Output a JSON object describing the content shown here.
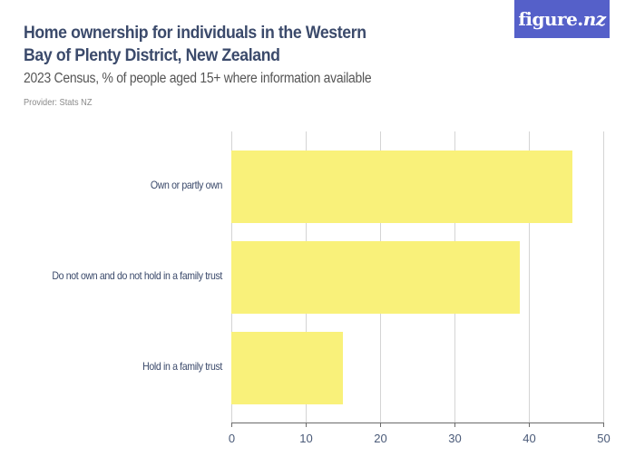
{
  "header": {
    "title": "Home ownership for individuals in the Western Bay of Plenty District, New Zealand",
    "subtitle": "2023 Census, % of people aged 15+ where information available",
    "provider": "Provider: Stats NZ"
  },
  "logo": {
    "text_main": "figure.",
    "text_italic": "nz",
    "background": "#5560c9"
  },
  "colors": {
    "bar": "#f9f17a",
    "title": "#3b4a6b",
    "grid": "#d4d4d4"
  },
  "chart_data": {
    "type": "bar",
    "orientation": "horizontal",
    "title": "Home ownership for individuals in the Western Bay of Plenty District, New Zealand",
    "subtitle": "2023 Census, % of people aged 15+ where information available",
    "categories": [
      "Own or partly own",
      "Do not own and do not hold in a family trust",
      "Hold in a family trust"
    ],
    "values": [
      45.9,
      38.8,
      15.0
    ],
    "xlabel": "",
    "ylabel": "",
    "xlim": [
      0,
      50
    ],
    "x_ticks": [
      0,
      10,
      20,
      30,
      40,
      50
    ],
    "grid": true,
    "legend": null
  }
}
